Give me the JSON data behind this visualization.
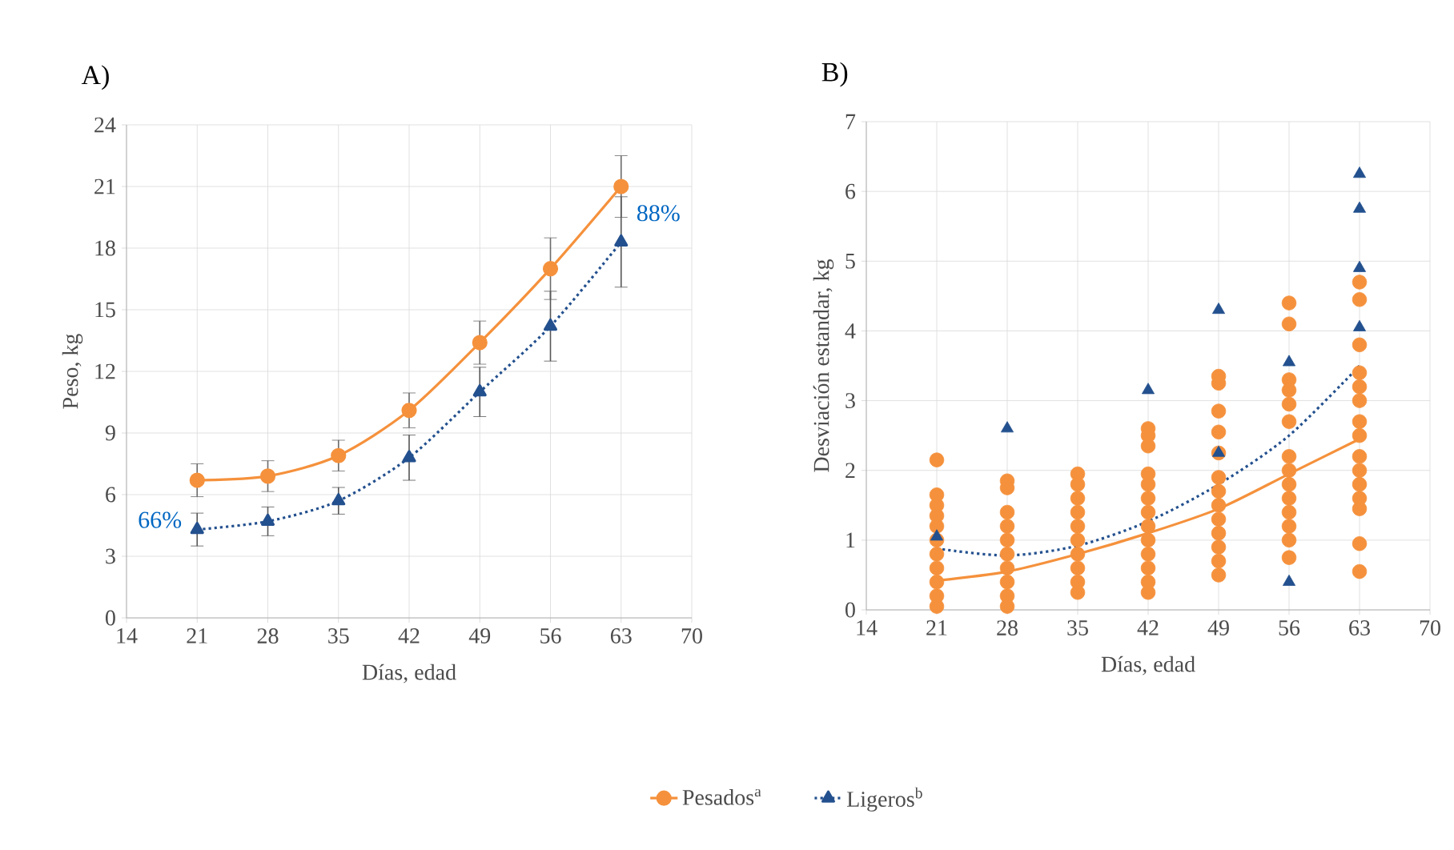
{
  "chart_data": [
    {
      "type": "line",
      "title": "A)",
      "xlabel": "Días, edad",
      "ylabel": "Peso, kg",
      "x": [
        21,
        28,
        35,
        42,
        49,
        56,
        63
      ],
      "series": [
        {
          "name": "Pesados$^{a}$",
          "color": "#f5913c",
          "marker": "circle",
          "line_style": "solid",
          "values": [
            6.7,
            6.9,
            7.9,
            10.1,
            13.4,
            17.0,
            21.0
          ],
          "errors": [
            0.8,
            0.75,
            0.75,
            0.85,
            1.05,
            1.5,
            1.5
          ]
        },
        {
          "name": "Ligeros$^{b}$",
          "color": "#23508e",
          "marker": "triangle",
          "line_style": "dotted",
          "values": [
            4.3,
            4.7,
            5.7,
            7.8,
            11.0,
            14.2,
            18.3
          ],
          "errors": [
            0.8,
            0.7,
            0.65,
            1.1,
            1.2,
            1.7,
            2.2
          ]
        }
      ],
      "annotations": [
        {
          "text": "66%",
          "x": 21,
          "y": 4.3
        },
        {
          "text": "88%",
          "x": 63,
          "y": 18.3
        }
      ],
      "xlim": [
        14,
        70
      ],
      "xticks": [
        14,
        21,
        28,
        35,
        42,
        49,
        56,
        63,
        70
      ],
      "ylim": [
        0,
        24
      ],
      "yticks": [
        0,
        3,
        6,
        9,
        12,
        15,
        18,
        21,
        24
      ],
      "grid": true,
      "legend": "bottom"
    },
    {
      "type": "scatter",
      "title": "B)",
      "xlabel": "Días, edad",
      "ylabel": "Desviación estandar, kg",
      "series": [
        {
          "type": "scatter",
          "color": "#f5913c",
          "marker": "circle",
          "x": [
            21,
            21,
            21,
            21,
            21,
            21,
            21,
            21,
            21,
            21,
            21,
            28,
            28,
            28,
            28,
            28,
            28,
            28,
            28,
            28,
            28,
            35,
            35,
            35,
            35,
            35,
            35,
            35,
            35,
            35,
            35,
            42,
            42,
            42,
            42,
            42,
            42,
            42,
            42,
            42,
            42,
            42,
            42,
            42,
            49,
            49,
            49,
            49,
            49,
            49,
            49,
            49,
            49,
            49,
            49,
            49,
            49,
            56,
            56,
            56,
            56,
            56,
            56,
            56,
            56,
            56,
            56,
            56,
            56,
            56,
            56,
            63,
            63,
            63,
            63,
            63,
            63,
            63,
            63,
            63,
            63,
            63,
            63,
            63,
            63,
            63
          ],
          "values": [
            2.15,
            1.65,
            1.5,
            1.35,
            1.2,
            1.0,
            0.8,
            0.6,
            0.4,
            0.2,
            0.05,
            1.85,
            1.75,
            1.4,
            1.2,
            1.0,
            0.8,
            0.6,
            0.4,
            0.2,
            0.05,
            1.95,
            1.8,
            1.6,
            1.4,
            1.2,
            1.0,
            0.8,
            0.6,
            0.4,
            0.25,
            2.6,
            2.5,
            2.35,
            1.95,
            1.8,
            1.6,
            1.4,
            1.2,
            1.0,
            0.8,
            0.6,
            0.4,
            0.25,
            3.35,
            3.25,
            2.85,
            2.55,
            2.25,
            1.9,
            1.7,
            1.5,
            1.3,
            1.1,
            0.9,
            0.7,
            0.5,
            4.4,
            4.1,
            3.3,
            3.15,
            2.95,
            2.7,
            2.2,
            2.0,
            1.8,
            1.6,
            1.4,
            1.2,
            1.0,
            0.75,
            4.7,
            4.45,
            3.8,
            3.4,
            3.2,
            3.0,
            2.7,
            2.5,
            2.2,
            2.0,
            1.8,
            1.6,
            1.45,
            0.95,
            0.55
          ]
        },
        {
          "type": "scatter",
          "color": "#23508e",
          "marker": "triangle",
          "x": [
            21,
            28,
            42,
            49,
            49,
            56,
            56,
            63,
            63,
            63,
            63
          ],
          "values": [
            1.05,
            2.6,
            3.15,
            4.3,
            2.25,
            3.55,
            0.4,
            6.25,
            5.75,
            4.9,
            4.05
          ]
        },
        {
          "type": "line",
          "color": "#f5913c",
          "marker": "none",
          "line_style": "solid",
          "x": [
            21,
            28,
            35,
            42,
            49,
            56,
            63
          ],
          "values": [
            0.42,
            0.55,
            0.8,
            1.1,
            1.45,
            1.95,
            2.45
          ]
        },
        {
          "type": "line",
          "color": "#23508e",
          "marker": "none",
          "line_style": "dotted",
          "x": [
            21,
            28,
            35,
            42,
            49,
            56,
            63
          ],
          "values": [
            0.88,
            0.78,
            0.92,
            1.27,
            1.8,
            2.5,
            3.5
          ]
        }
      ],
      "xlim": [
        14,
        70
      ],
      "xticks": [
        14,
        21,
        28,
        35,
        42,
        49,
        56,
        63,
        70
      ],
      "ylim": [
        0,
        7
      ],
      "yticks": [
        0,
        1,
        2,
        3,
        4,
        5,
        6,
        7
      ],
      "grid": true
    }
  ]
}
